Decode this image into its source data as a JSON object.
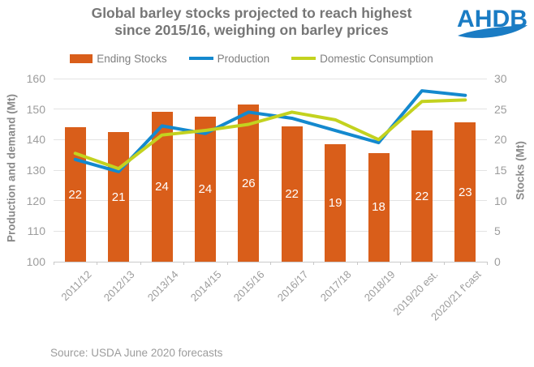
{
  "header": {
    "title_line1": "Global barley stocks projected to reach highest",
    "title_line2": "since 2015/16, weighing on barley prices",
    "logo_text": "AHDB",
    "logo_color": "#1a7cc4"
  },
  "legend": [
    {
      "label": "Ending Stocks",
      "marker": "rect",
      "color": "#d95e1a"
    },
    {
      "label": "Production",
      "marker": "line",
      "color": "#1489ce"
    },
    {
      "label": "Domestic Consumption",
      "marker": "line",
      "color": "#c3d21f"
    }
  ],
  "chart_data": {
    "type": "bar",
    "subtype": "combo-bar-line-dual-axis",
    "title": "Global barley stocks projected to reach highest since 2015/16, weighing on barley prices",
    "categories": [
      "2011/12",
      "2012/13",
      "2013/14",
      "2014/15",
      "2015/16",
      "2016/17",
      "2017/18",
      "2018/19",
      "2019/20 est.",
      "2020/21 f'cast"
    ],
    "bar_series": {
      "name": "Ending Stocks",
      "axis": "right",
      "labels": [
        "22",
        "21",
        "24",
        "24",
        "26",
        "22",
        "19",
        "18",
        "22",
        "23"
      ],
      "values": [
        22.0,
        21.2,
        24.5,
        23.7,
        25.7,
        22.2,
        19.3,
        17.8,
        21.5,
        22.8
      ],
      "color": "#d95e1a",
      "label_color": "#ffffff"
    },
    "line_series": [
      {
        "name": "Production",
        "axis": "left",
        "values": [
          133.5,
          129.5,
          144.5,
          142,
          149,
          147,
          143,
          139,
          156,
          154.5
        ],
        "color": "#1489ce"
      },
      {
        "name": "Domestic Consumption",
        "axis": "left",
        "values": [
          135.5,
          130.5,
          141.5,
          143,
          145,
          149,
          146.5,
          140,
          152.5,
          153
        ],
        "color": "#c3d21f"
      }
    ],
    "left_axis": {
      "title": "Production and demand (Mt)",
      "min": 100,
      "max": 160,
      "step": 10
    },
    "right_axis": {
      "title": "Stocks (Mt)",
      "min": 0,
      "max": 30,
      "step": 5
    },
    "grid": true,
    "legend_position": "top",
    "gridline_color": "#e3e3e3",
    "axisline_color": "#c9c9c9",
    "tick_label_color": "#9c9c9c"
  },
  "source": "Source: USDA June 2020 forecasts"
}
